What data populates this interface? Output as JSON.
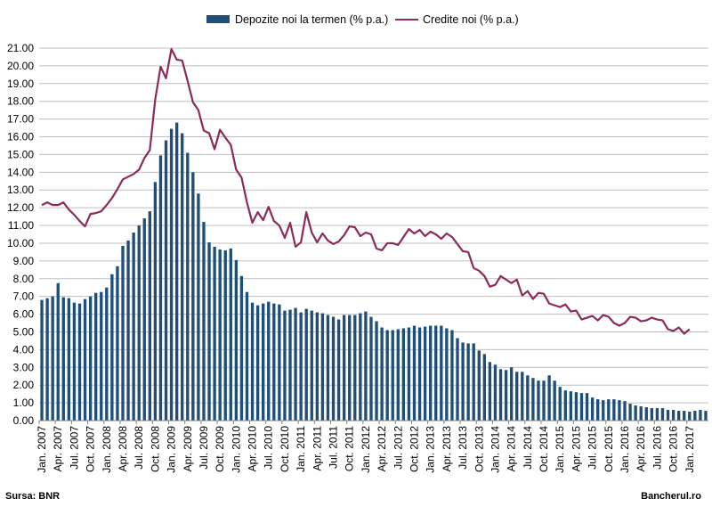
{
  "chart_data": {
    "type": "bar+line",
    "title": "",
    "xlabel": "",
    "ylabel": "",
    "ylim": [
      0,
      21
    ],
    "yticks": [
      "0.00",
      "1.00",
      "2.00",
      "3.00",
      "4.00",
      "5.00",
      "6.00",
      "7.00",
      "8.00",
      "9.00",
      "10.00",
      "11.00",
      "12.00",
      "13.00",
      "14.00",
      "15.00",
      "16.00",
      "17.00",
      "18.00",
      "19.00",
      "20.00",
      "21.00"
    ],
    "grid": true,
    "legend_position": "top",
    "colors": {
      "bar": "#1f4e79",
      "line": "#8b2a5c",
      "grid": "#bfbfbf"
    },
    "x_tick_labels": [
      "Jan. 2007",
      "Apr. 2007",
      "Jul. 2007",
      "Oct. 2007",
      "Jan. 2008",
      "Apr. 2008",
      "Jul. 2008",
      "Oct. 2008",
      "Jan. 2009",
      "Apr. 2009",
      "Jul. 2009",
      "Oct. 2009",
      "Jan. 2010",
      "Apr. 2010",
      "Jul. 2010",
      "Oct. 2010",
      "Jan. 2011",
      "Apr. 2011",
      "Jul. 2011",
      "Oct. 2011",
      "Jan. 2012",
      "Apr. 2012",
      "Jul. 2012",
      "Oct. 2012",
      "Jan. 2013",
      "Apr. 2013",
      "Jul. 2013",
      "Oct. 2013",
      "Jan. 2014",
      "Apr. 2014",
      "Jul. 2014",
      "Oct. 2014",
      "Jan. 2015",
      "Apr. 2015",
      "Jul. 2015",
      "Oct. 2015",
      "Jan. 2016",
      "Apr. 2016",
      "Jul. 2016",
      "Oct. 2016",
      "Jan. 2017"
    ],
    "series": [
      {
        "name": "Depozite noi la termen (% p.a.)",
        "kind": "bar",
        "values": [
          6.8,
          6.9,
          7.0,
          7.75,
          6.95,
          6.9,
          6.65,
          6.6,
          6.85,
          7.0,
          7.2,
          7.25,
          7.5,
          8.25,
          8.7,
          9.85,
          10.15,
          10.6,
          11.0,
          11.4,
          11.8,
          13.45,
          14.95,
          15.8,
          16.45,
          16.8,
          16.2,
          15.1,
          14.0,
          12.8,
          11.2,
          10.05,
          9.8,
          9.65,
          9.6,
          9.7,
          9.05,
          8.15,
          7.25,
          6.65,
          6.5,
          6.6,
          6.7,
          6.6,
          6.55,
          6.2,
          6.25,
          6.35,
          6.1,
          6.3,
          6.2,
          6.1,
          6.05,
          5.95,
          5.85,
          5.7,
          5.95,
          5.95,
          5.95,
          6.05,
          6.15,
          5.85,
          5.6,
          5.25,
          5.1,
          5.1,
          5.15,
          5.2,
          5.25,
          5.35,
          5.25,
          5.3,
          5.35,
          5.35,
          5.35,
          5.2,
          5.1,
          4.65,
          4.4,
          4.35,
          4.35,
          3.95,
          3.75,
          3.3,
          3.15,
          2.9,
          2.85,
          3.0,
          2.75,
          2.75,
          2.55,
          2.4,
          2.25,
          2.25,
          2.55,
          2.25,
          1.9,
          1.7,
          1.65,
          1.6,
          1.55,
          1.55,
          1.3,
          1.2,
          1.15,
          1.2,
          1.2,
          1.15,
          1.1,
          0.95,
          0.85,
          0.8,
          0.75,
          0.7,
          0.7,
          0.7,
          0.6,
          0.6,
          0.55,
          0.55,
          0.5,
          0.55,
          0.6,
          0.55
        ]
      },
      {
        "name": "Credite noi (% p.a.)",
        "kind": "line",
        "values": [
          12.15,
          12.3,
          12.15,
          12.15,
          12.3,
          11.9,
          11.6,
          11.25,
          10.95,
          11.65,
          11.7,
          11.8,
          12.15,
          12.55,
          13.05,
          13.6,
          13.75,
          13.9,
          14.15,
          14.8,
          15.25,
          18.1,
          19.95,
          19.3,
          20.95,
          20.35,
          20.3,
          19.15,
          17.95,
          17.5,
          16.35,
          16.2,
          15.3,
          16.4,
          15.95,
          15.55,
          14.15,
          13.7,
          12.3,
          11.15,
          11.75,
          11.3,
          12.05,
          11.25,
          11.0,
          10.3,
          11.15,
          9.8,
          10.05,
          11.75,
          10.6,
          10.05,
          10.55,
          10.15,
          9.95,
          10.1,
          10.45,
          10.95,
          10.9,
          10.4,
          10.6,
          10.5,
          9.7,
          9.6,
          10.0,
          10.0,
          9.9,
          10.35,
          10.8,
          10.55,
          10.75,
          10.4,
          10.65,
          10.5,
          10.25,
          10.55,
          10.35,
          9.95,
          9.55,
          9.5,
          8.6,
          8.45,
          8.15,
          7.55,
          7.65,
          8.15,
          7.95,
          7.75,
          7.95,
          7.05,
          7.3,
          6.85,
          7.2,
          7.15,
          6.6,
          6.5,
          6.4,
          6.55,
          6.15,
          6.2,
          5.7,
          5.8,
          5.9,
          5.65,
          5.95,
          5.85,
          5.5,
          5.35,
          5.5,
          5.85,
          5.8,
          5.6,
          5.65,
          5.8,
          5.7,
          5.65,
          5.15,
          5.05,
          5.25,
          4.9,
          5.15
        ]
      }
    ]
  },
  "footer": {
    "source": "Sursa: BNR",
    "brand": "Bancherul.ro"
  }
}
